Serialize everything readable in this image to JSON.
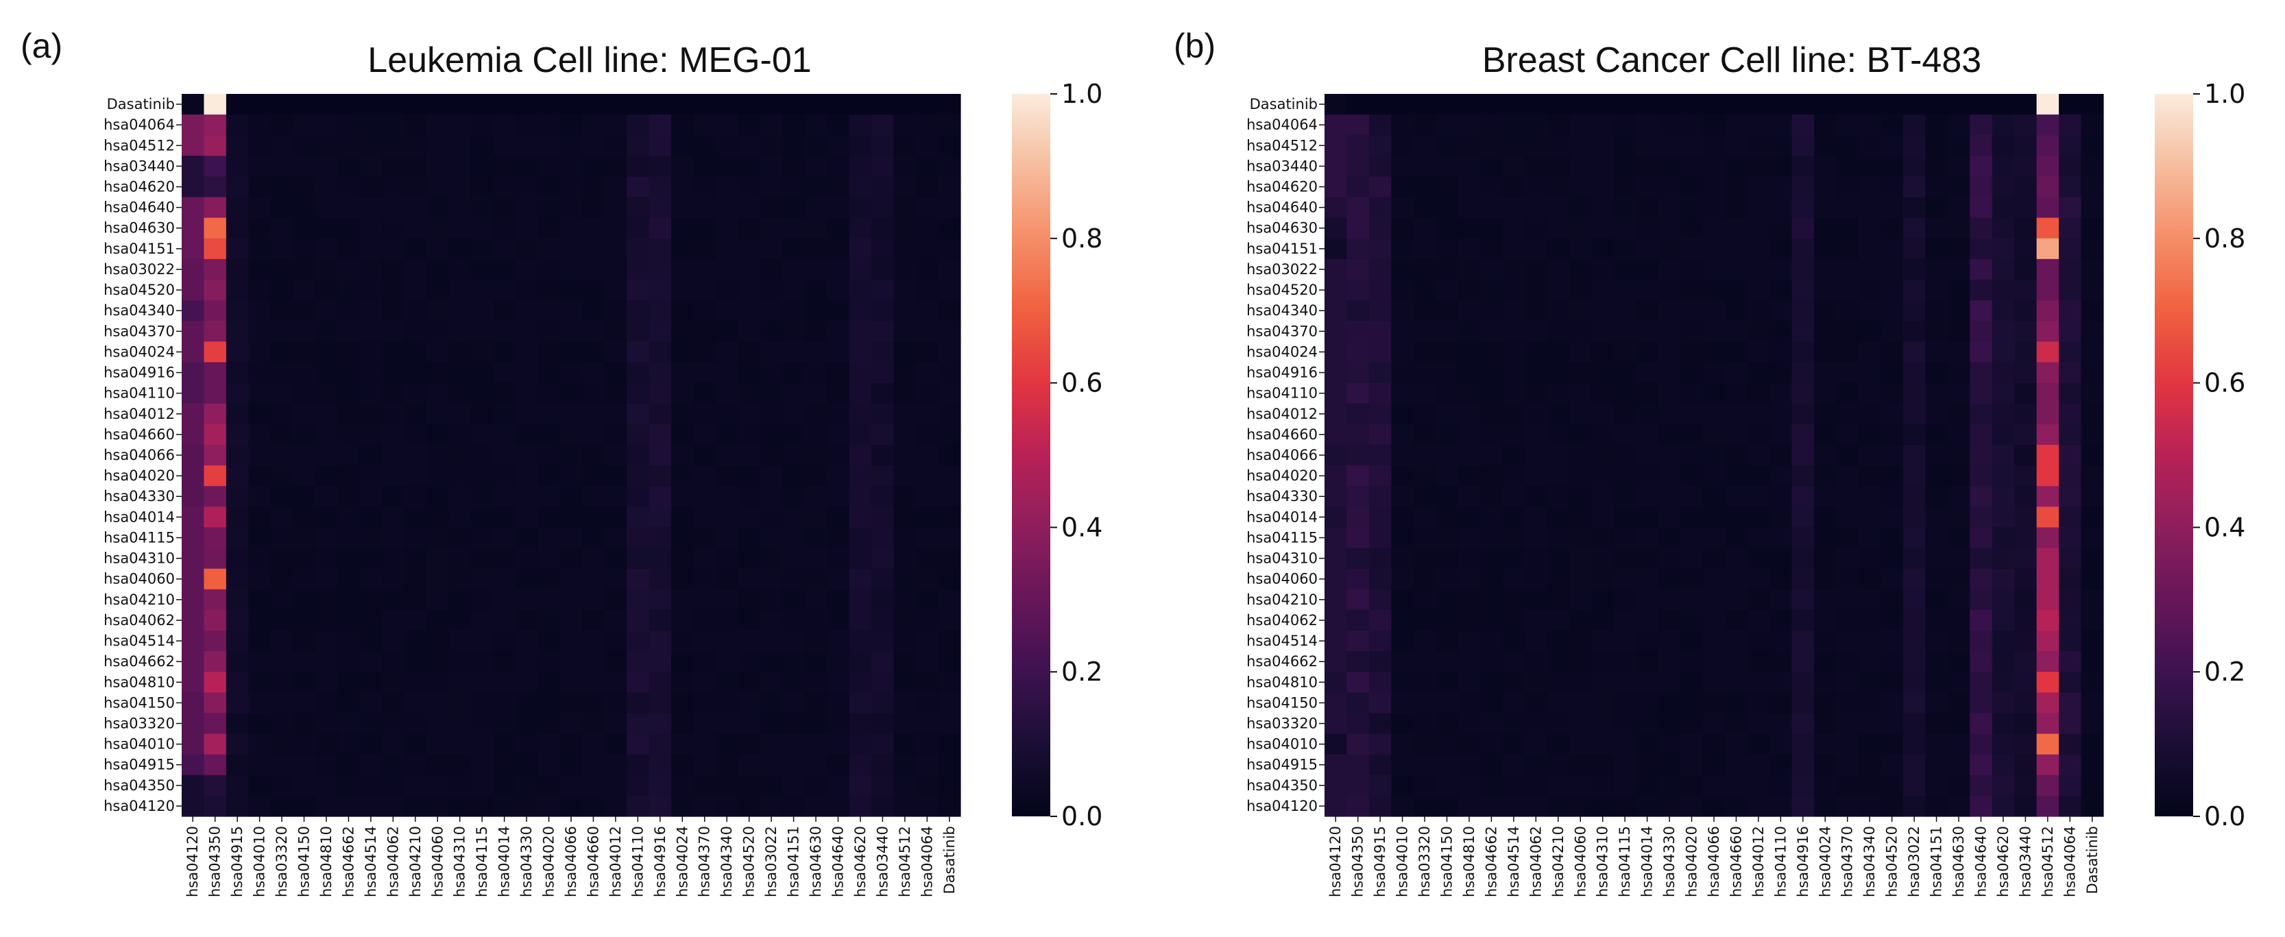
{
  "chart_data": [
    {
      "type": "heatmap",
      "panel_label": "(a)",
      "title": "Leukemia Cell line: MEG-01",
      "xlabel": "",
      "ylabel": "",
      "row_labels": [
        "Dasatinib",
        "hsa04064",
        "hsa04512",
        "hsa03440",
        "hsa04620",
        "hsa04640",
        "hsa04630",
        "hsa04151",
        "hsa03022",
        "hsa04520",
        "hsa04340",
        "hsa04370",
        "hsa04024",
        "hsa04916",
        "hsa04110",
        "hsa04012",
        "hsa04660",
        "hsa04066",
        "hsa04020",
        "hsa04330",
        "hsa04014",
        "hsa04115",
        "hsa04310",
        "hsa04060",
        "hsa04210",
        "hsa04062",
        "hsa04514",
        "hsa04662",
        "hsa04810",
        "hsa04150",
        "hsa03320",
        "hsa04010",
        "hsa04915",
        "hsa04350",
        "hsa04120"
      ],
      "col_labels": [
        "hsa04120",
        "hsa04350",
        "hsa04915",
        "hsa04010",
        "hsa03320",
        "hsa04150",
        "hsa04810",
        "hsa04662",
        "hsa04514",
        "hsa04062",
        "hsa04210",
        "hsa04060",
        "hsa04310",
        "hsa04115",
        "hsa04014",
        "hsa04330",
        "hsa04020",
        "hsa04066",
        "hsa04660",
        "hsa04012",
        "hsa04110",
        "hsa04916",
        "hsa04024",
        "hsa04370",
        "hsa04340",
        "hsa04520",
        "hsa03022",
        "hsa04151",
        "hsa04630",
        "hsa04640",
        "hsa04620",
        "hsa03440",
        "hsa04512",
        "hsa04064",
        "Dasatinib"
      ],
      "highlight_column": "hsa04350",
      "highlight_values": [
        1.0,
        0.4,
        0.42,
        0.2,
        0.15,
        0.38,
        0.72,
        0.65,
        0.35,
        0.38,
        0.33,
        0.36,
        0.62,
        0.3,
        0.3,
        0.4,
        0.45,
        0.4,
        0.62,
        0.32,
        0.48,
        0.33,
        0.32,
        0.7,
        0.35,
        0.38,
        0.32,
        0.38,
        0.5,
        0.38,
        0.3,
        0.45,
        0.3,
        0.12,
        0.1
      ],
      "first_column_values": [
        0.02,
        0.35,
        0.35,
        0.12,
        0.12,
        0.3,
        0.3,
        0.3,
        0.28,
        0.28,
        0.22,
        0.28,
        0.28,
        0.24,
        0.24,
        0.28,
        0.28,
        0.26,
        0.26,
        0.26,
        0.28,
        0.28,
        0.28,
        0.28,
        0.28,
        0.28,
        0.28,
        0.28,
        0.28,
        0.26,
        0.26,
        0.26,
        0.22,
        0.08,
        0.08
      ],
      "background_value": 0.02,
      "notes": "Remaining cells near 0.0–0.10; slightly elevated columns around hsa04110/hsa04916 and hsa04620/hsa03440",
      "colorbar": {
        "label": "",
        "min": 0.0,
        "max": 1.0,
        "ticks": [
          "0.0",
          "0.2",
          "0.4",
          "0.6",
          "0.8",
          "1.0"
        ]
      }
    },
    {
      "type": "heatmap",
      "panel_label": "(b)",
      "title": "Breast Cancer Cell line: BT-483",
      "xlabel": "",
      "ylabel": "",
      "row_labels": [
        "Dasatinib",
        "hsa04064",
        "hsa04512",
        "hsa03440",
        "hsa04620",
        "hsa04640",
        "hsa04630",
        "hsa04151",
        "hsa03022",
        "hsa04520",
        "hsa04340",
        "hsa04370",
        "hsa04024",
        "hsa04916",
        "hsa04110",
        "hsa04012",
        "hsa04660",
        "hsa04066",
        "hsa04020",
        "hsa04330",
        "hsa04014",
        "hsa04115",
        "hsa04310",
        "hsa04060",
        "hsa04210",
        "hsa04062",
        "hsa04514",
        "hsa04662",
        "hsa04810",
        "hsa04150",
        "hsa03320",
        "hsa04010",
        "hsa04915",
        "hsa04350",
        "hsa04120"
      ],
      "col_labels": [
        "hsa04120",
        "hsa04350",
        "hsa04915",
        "hsa04010",
        "hsa03320",
        "hsa04150",
        "hsa04810",
        "hsa04662",
        "hsa04514",
        "hsa04062",
        "hsa04210",
        "hsa04060",
        "hsa04310",
        "hsa04115",
        "hsa04014",
        "hsa04330",
        "hsa04020",
        "hsa04066",
        "hsa04660",
        "hsa04012",
        "hsa04110",
        "hsa04916",
        "hsa04024",
        "hsa04370",
        "hsa04340",
        "hsa04520",
        "hsa03022",
        "hsa04151",
        "hsa04630",
        "hsa04640",
        "hsa04620",
        "hsa03440",
        "hsa04512",
        "hsa04064",
        "Dasatinib"
      ],
      "highlight_column": "hsa04512",
      "highlight_values": [
        1.0,
        0.22,
        0.25,
        0.28,
        0.3,
        0.28,
        0.68,
        0.85,
        0.3,
        0.3,
        0.35,
        0.38,
        0.55,
        0.38,
        0.35,
        0.35,
        0.4,
        0.6,
        0.6,
        0.4,
        0.65,
        0.38,
        0.45,
        0.45,
        0.45,
        0.5,
        0.45,
        0.4,
        0.6,
        0.45,
        0.4,
        0.72,
        0.4,
        0.3,
        0.25
      ],
      "first_column_values": [
        0.02,
        0.15,
        0.15,
        0.15,
        0.15,
        0.12,
        0.08,
        0.05,
        0.12,
        0.12,
        0.12,
        0.12,
        0.12,
        0.12,
        0.12,
        0.12,
        0.12,
        0.1,
        0.12,
        0.12,
        0.1,
        0.12,
        0.12,
        0.12,
        0.12,
        0.12,
        0.12,
        0.12,
        0.1,
        0.12,
        0.12,
        0.06,
        0.12,
        0.12,
        0.12
      ],
      "background_value": 0.02,
      "notes": "Remaining cells near 0.0–0.15; columns hsa04350, hsa04915 and hsa04640 moderately elevated (~0.10–0.15)",
      "colorbar": {
        "label": "",
        "min": 0.0,
        "max": 1.0,
        "ticks": [
          "0.0",
          "0.2",
          "0.4",
          "0.6",
          "0.8",
          "1.0"
        ]
      }
    }
  ]
}
